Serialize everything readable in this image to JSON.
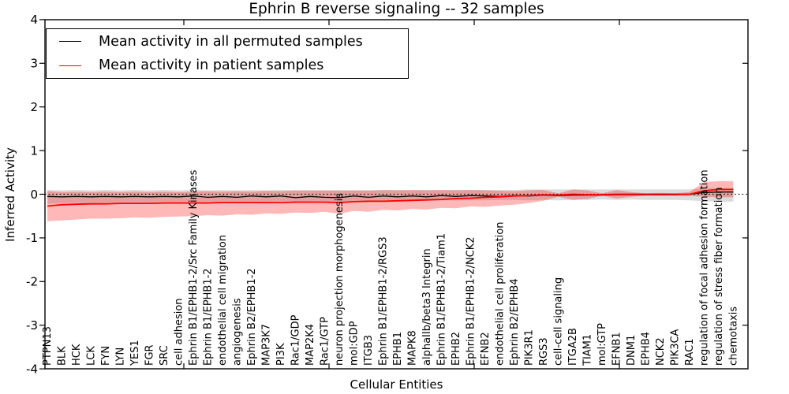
{
  "colors": {
    "permuted_line": "#000000",
    "patient_line": "#ff0000",
    "permuted_band": "rgba(128,128,128,0.28)",
    "patient_band": "rgba(255,0,0,0.28)",
    "axis": "#000000"
  },
  "chart_data": {
    "type": "line",
    "title": "Ephrin B reverse signaling -- 32 samples",
    "xlabel": "Cellular Entities",
    "ylabel": "Inferred Activity",
    "ylim": [
      -4,
      4
    ],
    "yticks": [
      4,
      3,
      2,
      1,
      0,
      -1,
      -2,
      -3,
      -4
    ],
    "right_yticks": [
      3,
      1,
      -1,
      -3
    ],
    "grid": false,
    "legend_position": "upper left",
    "zero_line": {
      "style": "dotted",
      "y": 0
    },
    "categories": [
      "PTPN13",
      "BLK",
      "HCK",
      "LCK",
      "FYN",
      "LYN",
      "YES1",
      "FGR",
      "SRC",
      "cell adhesion",
      "Ephrin B1/EPHB1-2/Src Family Kinases",
      "Ephrin B1/EPHB1-2",
      "endothelial cell migration",
      "angiogenesis",
      "Ephrin B2/EPHB1-2",
      "MAP3K7",
      "PI3K",
      "Rac1/GDP",
      "MAP2K4",
      "Rac1/GTP",
      "neuron projection morphogenesis",
      "mol:GDP",
      "ITGB3",
      "Ephrin B1/EPHB1-2/RGS3",
      "EPHB1",
      "MAPK8",
      "alphaIIb/beta3 Integrin",
      "Ephrin B1/EPHB1-2/Tiam1",
      "EPHB2",
      "Ephrin B1/EPHB1-2/NCK2",
      "EFNB2",
      "endothelial cell proliferation",
      "Ephrin B2/EPHB4",
      "PIK3R1",
      "RGS3",
      "cell-cell signaling",
      "ITGA2B",
      "TIAM1",
      "mol:GTP",
      "EFNB1",
      "DNM1",
      "EPHB4",
      "NCK2",
      "PIK3CA",
      "RAC1",
      "regulation of focal adhesion formation",
      "regulation of stress fiber formation",
      "chemotaxis"
    ],
    "series": [
      {
        "name": "Mean activity in all permuted samples",
        "color": "#000000",
        "band_color": "rgba(128,128,128,0.28)",
        "values": [
          -0.05,
          -0.06,
          -0.05,
          -0.06,
          -0.05,
          -0.06,
          -0.05,
          -0.06,
          -0.05,
          -0.06,
          -0.04,
          -0.07,
          -0.05,
          -0.07,
          -0.04,
          -0.06,
          -0.04,
          -0.08,
          -0.05,
          -0.07,
          -0.08,
          -0.04,
          -0.07,
          -0.04,
          -0.06,
          -0.04,
          -0.06,
          -0.03,
          -0.05,
          -0.03,
          -0.04,
          -0.05,
          -0.03,
          -0.04,
          -0.02,
          -0.03,
          -0.02,
          -0.02,
          -0.02,
          -0.01,
          -0.01,
          -0.01,
          -0.01,
          -0.01,
          0.0,
          0.04,
          0.05,
          0.05
        ],
        "band_upper": [
          0.1,
          0.09,
          0.1,
          0.09,
          0.1,
          0.09,
          0.1,
          0.09,
          0.1,
          0.09,
          0.1,
          0.09,
          0.1,
          0.09,
          0.1,
          0.09,
          0.1,
          0.09,
          0.1,
          0.09,
          0.1,
          0.09,
          0.1,
          0.09,
          0.1,
          0.09,
          0.1,
          0.09,
          0.1,
          0.1,
          0.1,
          0.1,
          0.1,
          0.11,
          0.11,
          0.11,
          0.11,
          0.11,
          0.11,
          0.11,
          0.11,
          0.11,
          0.11,
          0.11,
          0.11,
          0.14,
          0.14,
          0.14
        ],
        "band_lower": [
          -0.22,
          -0.21,
          -0.2,
          -0.2,
          -0.19,
          -0.19,
          -0.19,
          -0.19,
          -0.18,
          -0.18,
          -0.18,
          -0.18,
          -0.17,
          -0.17,
          -0.17,
          -0.17,
          -0.16,
          -0.17,
          -0.16,
          -0.16,
          -0.17,
          -0.15,
          -0.16,
          -0.15,
          -0.15,
          -0.14,
          -0.15,
          -0.14,
          -0.14,
          -0.13,
          -0.14,
          -0.13,
          -0.13,
          -0.14,
          -0.13,
          -0.14,
          -0.13,
          -0.13,
          -0.12,
          -0.13,
          -0.12,
          -0.13,
          -0.13,
          -0.13,
          -0.14,
          -0.16,
          -0.17,
          -0.17
        ]
      },
      {
        "name": "Mean activity in patient samples",
        "color": "#ff0000",
        "band_color": "rgba(255,0,0,0.28)",
        "values": [
          -0.27,
          -0.24,
          -0.23,
          -0.22,
          -0.22,
          -0.21,
          -0.21,
          -0.21,
          -0.2,
          -0.2,
          -0.2,
          -0.2,
          -0.19,
          -0.19,
          -0.19,
          -0.19,
          -0.19,
          -0.18,
          -0.18,
          -0.18,
          -0.19,
          -0.17,
          -0.16,
          -0.16,
          -0.15,
          -0.14,
          -0.13,
          -0.12,
          -0.1,
          -0.09,
          -0.07,
          -0.06,
          -0.04,
          -0.03,
          -0.01,
          -0.02,
          0.0,
          -0.01,
          -0.01,
          0.0,
          0.0,
          0.0,
          0.0,
          0.0,
          0.0,
          0.08,
          0.11,
          0.11
        ],
        "band_upper": [
          0.07,
          0.05,
          0.06,
          0.05,
          0.06,
          0.05,
          0.06,
          0.05,
          0.06,
          0.05,
          0.06,
          0.07,
          0.06,
          0.07,
          0.06,
          0.08,
          0.07,
          0.09,
          0.08,
          0.09,
          0.08,
          0.09,
          0.08,
          0.1,
          0.09,
          0.1,
          0.09,
          0.1,
          0.09,
          0.1,
          0.09,
          0.08,
          0.07,
          0.09,
          0.1,
          0.02,
          0.11,
          0.09,
          0.02,
          0.1,
          0.05,
          0.02,
          0.03,
          0.02,
          0.05,
          0.28,
          0.3,
          0.3
        ],
        "band_lower": [
          -0.62,
          -0.6,
          -0.58,
          -0.56,
          -0.56,
          -0.55,
          -0.53,
          -0.54,
          -0.52,
          -0.51,
          -0.5,
          -0.48,
          -0.49,
          -0.46,
          -0.47,
          -0.44,
          -0.45,
          -0.42,
          -0.43,
          -0.4,
          -0.45,
          -0.38,
          -0.4,
          -0.36,
          -0.37,
          -0.34,
          -0.35,
          -0.31,
          -0.32,
          -0.28,
          -0.29,
          -0.26,
          -0.24,
          -0.2,
          -0.15,
          -0.06,
          -0.13,
          -0.11,
          -0.03,
          -0.1,
          -0.06,
          -0.03,
          -0.03,
          -0.03,
          -0.04,
          -0.06,
          -0.07,
          -0.07
        ]
      }
    ]
  }
}
